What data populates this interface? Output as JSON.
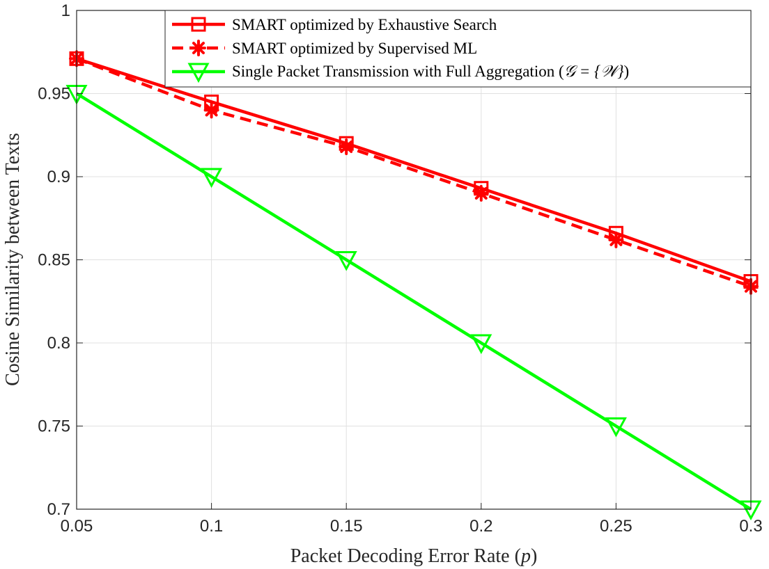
{
  "chart_data": {
    "type": "line",
    "xlabel_text": "Packet Decoding Error Rate (",
    "xlabel_var": "p",
    "xlabel_close": ")",
    "ylabel": "Cosine Similarity between Texts",
    "xlim": [
      0.05,
      0.3
    ],
    "ylim": [
      0.7,
      1.0
    ],
    "x": [
      0.05,
      0.1,
      0.15,
      0.2,
      0.25,
      0.3
    ],
    "xticks": [
      "0.05",
      "0.1",
      "0.15",
      "0.2",
      "0.25",
      "0.3"
    ],
    "yticks": [
      "0.7",
      "0.75",
      "0.8",
      "0.85",
      "0.9",
      "0.95",
      "1"
    ],
    "grid": true,
    "legend_position": "top-right",
    "series": [
      {
        "name": "SMART optimized by Exhaustive Search",
        "values": [
          0.971,
          0.945,
          0.92,
          0.893,
          0.866,
          0.837
        ],
        "color": "#ff0000",
        "line": "solid",
        "marker": "square"
      },
      {
        "name": "SMART optimized by Supervised ML",
        "values": [
          0.971,
          0.94,
          0.918,
          0.89,
          0.862,
          0.834
        ],
        "color": "#ff0000",
        "line": "dashed",
        "marker": "asterisk"
      },
      {
        "name_text": "Single Packet Transmission with Full Aggregation (",
        "name_math": "𝒢 = {𝒲}",
        "name_close": ")",
        "values": [
          0.95,
          0.9,
          0.85,
          0.8,
          0.75,
          0.7
        ],
        "color": "#00ff00",
        "line": "solid",
        "marker": "triangle-down"
      }
    ]
  }
}
